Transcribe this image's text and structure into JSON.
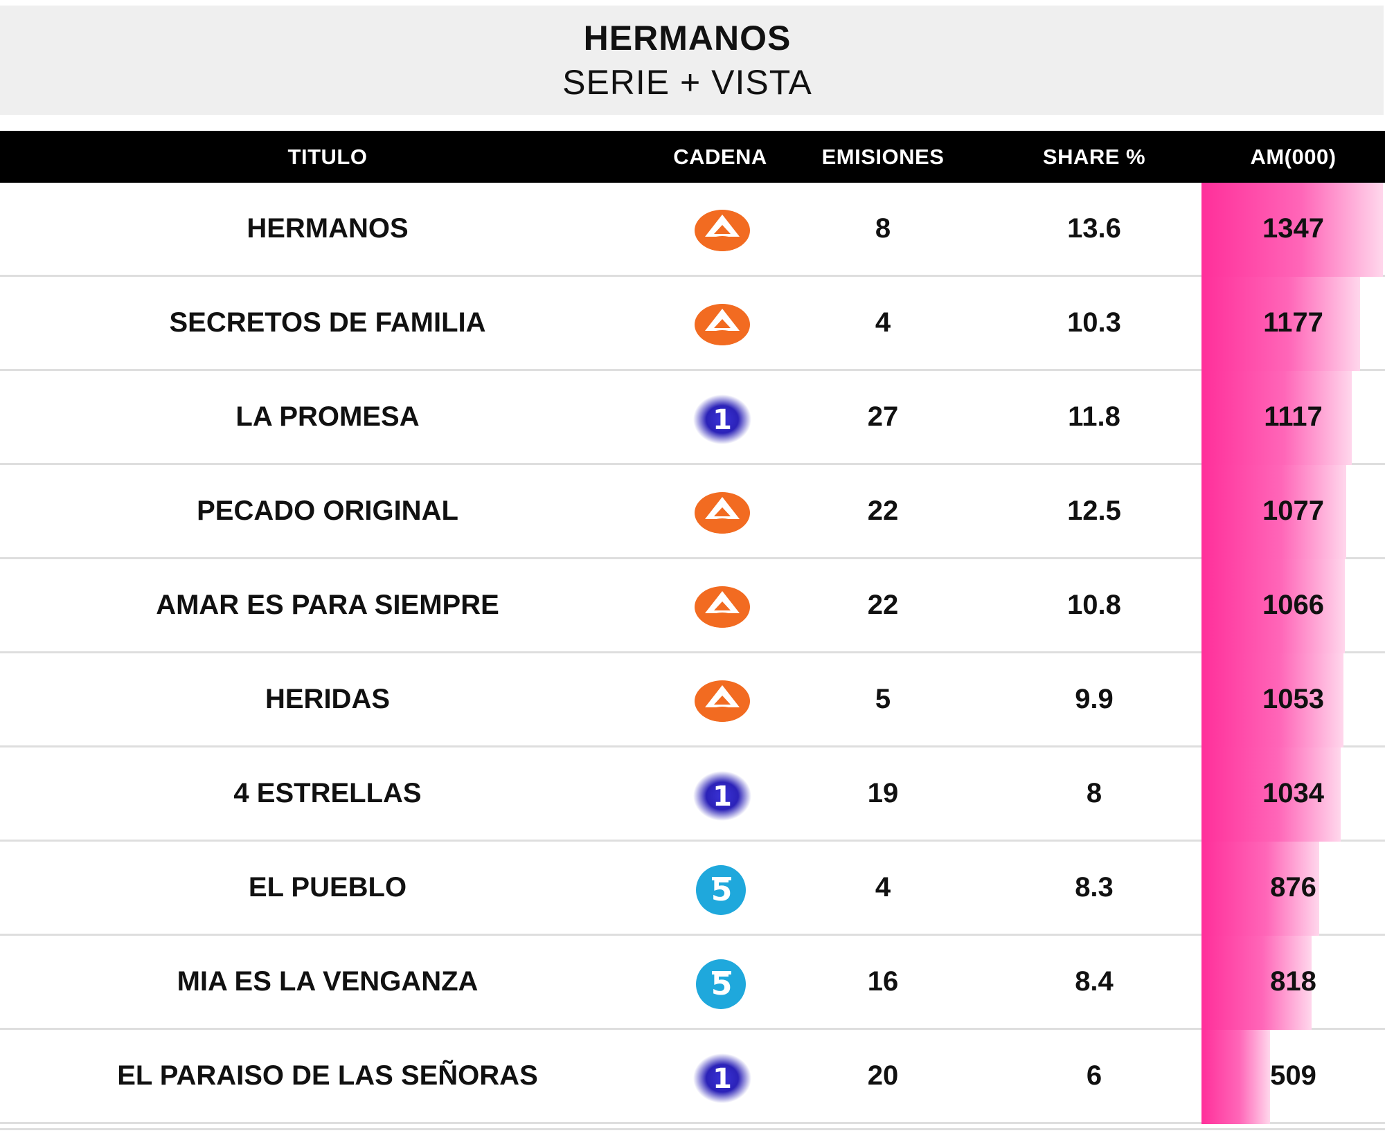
{
  "header": {
    "title": "HERMANOS",
    "subtitle": "SERIE + VISTA"
  },
  "columns": {
    "titulo": "TITULO",
    "cadena": "CADENA",
    "emisiones": "EMISIONES",
    "share": "SHARE %",
    "am": "AM(000)"
  },
  "colors": {
    "bar_start": "#ff2f9a",
    "bar_end": "#ffd7ec",
    "antena3": "#f26b21",
    "la1": "#2b2fc4",
    "telecinco": "#1fa8dc"
  },
  "rows": [
    {
      "titulo": "HERMANOS",
      "cadena": "antena3-icon",
      "emisiones": "8",
      "share": "13.6",
      "am": "1347"
    },
    {
      "titulo": "SECRETOS DE FAMILIA",
      "cadena": "antena3-icon",
      "emisiones": "4",
      "share": "10.3",
      "am": "1177"
    },
    {
      "titulo": "LA PROMESA",
      "cadena": "la1-icon",
      "emisiones": "27",
      "share": "11.8",
      "am": "1117"
    },
    {
      "titulo": "PECADO ORIGINAL",
      "cadena": "antena3-icon",
      "emisiones": "22",
      "share": "12.5",
      "am": "1077"
    },
    {
      "titulo": "AMAR ES PARA SIEMPRE",
      "cadena": "antena3-icon",
      "emisiones": "22",
      "share": "10.8",
      "am": "1066"
    },
    {
      "titulo": "HERIDAS",
      "cadena": "antena3-icon",
      "emisiones": "5",
      "share": "9.9",
      "am": "1053"
    },
    {
      "titulo": "4 ESTRELLAS",
      "cadena": "la1-icon",
      "emisiones": "19",
      "share": "8",
      "am": "1034"
    },
    {
      "titulo": "EL PUEBLO",
      "cadena": "telecinco-icon",
      "emisiones": "4",
      "share": "8.3",
      "am": "876"
    },
    {
      "titulo": "MIA ES LA VENGANZA",
      "cadena": "telecinco-icon",
      "emisiones": "16",
      "share": "8.4",
      "am": "818"
    },
    {
      "titulo": "EL PARAISO DE LAS SEÑORAS",
      "cadena": "la1-icon",
      "emisiones": "20",
      "share": "6",
      "am": "509"
    }
  ],
  "chart_data": {
    "type": "table",
    "title": "HERMANOS",
    "subtitle": "SERIE + VISTA",
    "columns": [
      "TITULO",
      "CADENA",
      "EMISIONES",
      "SHARE %",
      "AM(000)"
    ],
    "categories": [
      "HERMANOS",
      "SECRETOS DE FAMILIA",
      "LA PROMESA",
      "PECADO ORIGINAL",
      "AMAR ES PARA SIEMPRE",
      "HERIDAS",
      "4 ESTRELLAS",
      "EL PUEBLO",
      "MIA ES LA VENGANZA",
      "EL PARAISO DE LAS SEÑORAS"
    ],
    "series": [
      {
        "name": "EMISIONES",
        "values": [
          8,
          4,
          27,
          22,
          22,
          5,
          19,
          4,
          16,
          20
        ]
      },
      {
        "name": "SHARE %",
        "values": [
          13.6,
          10.3,
          11.8,
          12.5,
          10.8,
          9.9,
          8,
          8.3,
          8.4,
          6
        ]
      },
      {
        "name": "AM(000)",
        "values": [
          1347,
          1177,
          1117,
          1077,
          1066,
          1053,
          1034,
          876,
          818,
          509
        ]
      }
    ],
    "bar_series": "AM(000)",
    "xlim": [
      0,
      1347
    ]
  }
}
